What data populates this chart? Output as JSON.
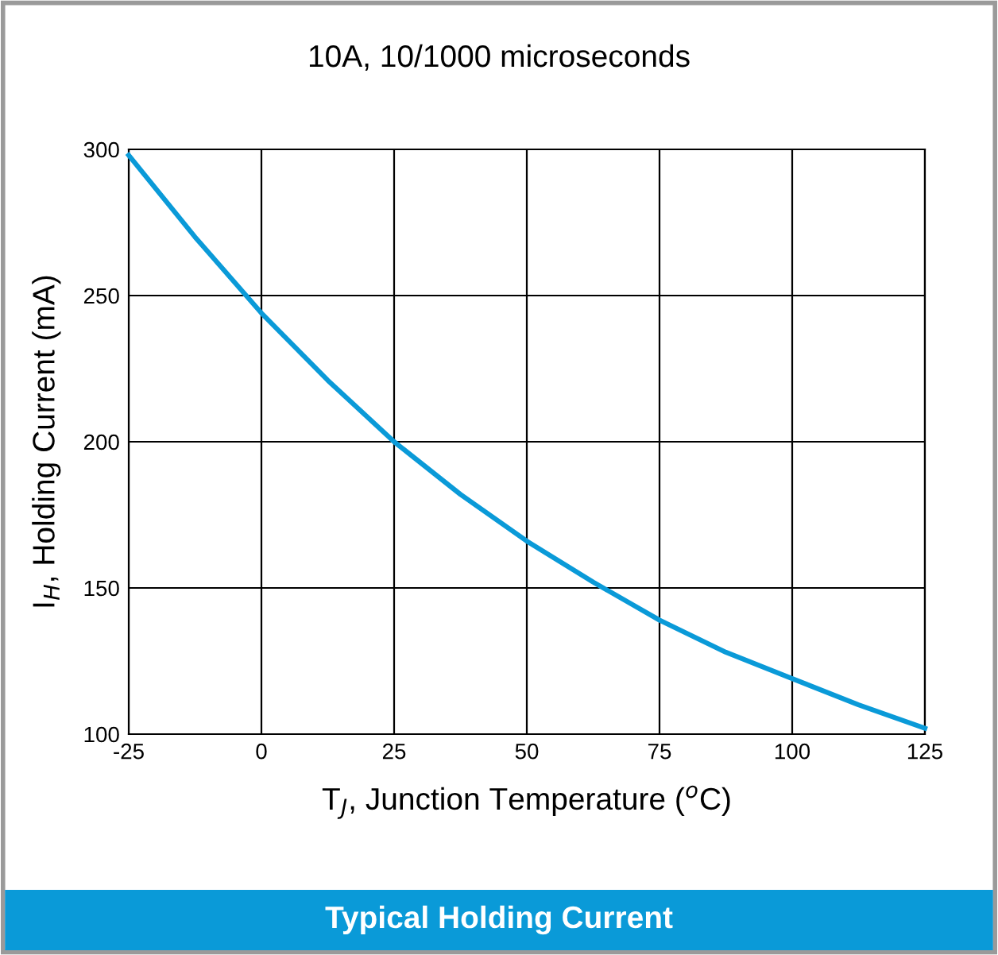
{
  "chart_data": {
    "type": "line",
    "title": "Typical Holding Current",
    "subtitle": "10A, 10/1000 microseconds",
    "xlabel": "T$_{J}$, Junction Temperature ($^{o}$C)",
    "ylabel": "I$_{H}$, Holding Current (mA)",
    "x": [
      -25,
      -12.5,
      0,
      12.5,
      25,
      37.5,
      50,
      62.5,
      75,
      87.5,
      100,
      112.5,
      125
    ],
    "series": [
      {
        "color": "#0a9ad8",
        "values": [
          298,
          270,
          244,
          221,
          200,
          182,
          166,
          152,
          139,
          128,
          119,
          110,
          102
        ]
      }
    ],
    "xlim": [
      -25,
      125
    ],
    "xticks": [
      -25,
      0,
      25,
      50,
      75,
      100,
      125
    ],
    "ylim": [
      100,
      300
    ],
    "yticks": [
      100,
      150,
      200,
      250,
      300
    ],
    "grid": true,
    "legend": false,
    "marker": "none",
    "line_style": "solid"
  }
}
